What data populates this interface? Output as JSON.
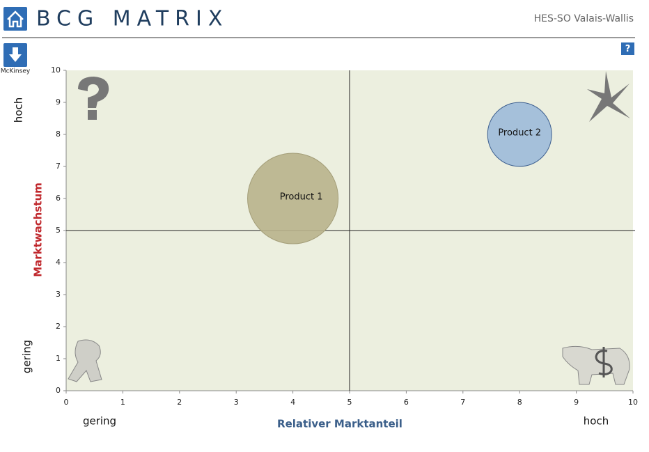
{
  "header": {
    "title": "BCG MATRIX",
    "org": "HES-SO Valais-Wallis"
  },
  "toolbar": {
    "download": "McKinsey",
    "help": "?"
  },
  "chart_data": {
    "type": "bubble",
    "x_label": "Relativer Marktanteil",
    "y_label": "Marktwachstum",
    "x_ends": [
      "gering",
      "hoch"
    ],
    "y_ends": [
      "gering",
      "hoch"
    ],
    "xlim": [
      0,
      10
    ],
    "ylim": [
      0,
      10
    ],
    "xticks": [
      0,
      1,
      2,
      3,
      4,
      5,
      6,
      7,
      8,
      9,
      10
    ],
    "yticks": [
      0,
      1,
      2,
      3,
      4,
      5,
      6,
      7,
      8,
      9,
      10
    ],
    "dividers": {
      "x": 5,
      "y": 5
    },
    "series": [
      {
        "name": "Product 1",
        "color": "#b9b38c",
        "x": [
          4
        ],
        "values": [
          6
        ],
        "sizes": [
          2
        ]
      },
      {
        "name": "Product 2",
        "color": "#9dbad9",
        "x": [
          8
        ],
        "values": [
          8
        ],
        "sizes": [
          1
        ]
      }
    ]
  }
}
